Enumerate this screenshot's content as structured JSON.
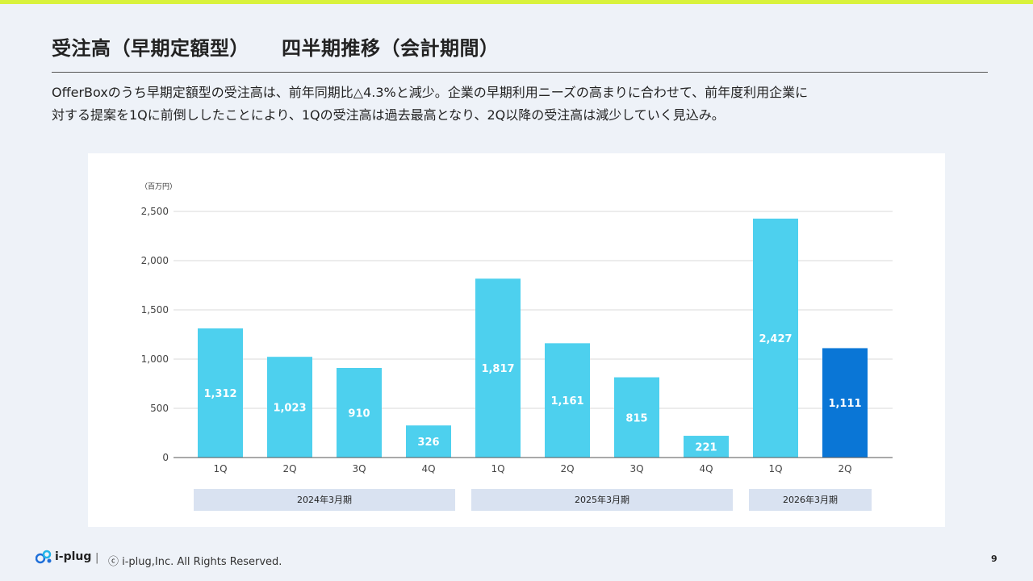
{
  "slide": {
    "title": "受注高（早期定額型）",
    "title_2": "四半期推移（会計期間）",
    "description_line1": "OfferBoxのうち早期定額型の受注高は、前年同期比△4.3%と減少。企業の早期利用ニーズの高まりに合わせて、前年度利用企業に",
    "description_line2": "対する提案を1Qに前倒ししたことにより、1Qの受注高は過去最高となり、2Q以降の受注高は減少していく見込み。",
    "page_number": "9"
  },
  "footer": {
    "brand": "i-plug",
    "separator": "|",
    "copyright": "ⓒ i-plug,Inc. All Rights Reserved."
  },
  "chart_data": {
    "type": "bar",
    "unit_label": "（百万円）",
    "categories": [
      "1Q",
      "2Q",
      "3Q",
      "4Q",
      "1Q",
      "2Q",
      "3Q",
      "4Q",
      "1Q",
      "2Q"
    ],
    "values": [
      1312,
      1023,
      910,
      326,
      1817,
      1161,
      815,
      221,
      2427,
      1111
    ],
    "value_labels": [
      "1,312",
      "1,023",
      "910",
      "326",
      "1,817",
      "1,161",
      "815",
      "221",
      "2,427",
      "1,111"
    ],
    "highlight_index": 9,
    "colors": {
      "bar": "#4dd0ee",
      "highlight": "#0a76d6",
      "grid": "#d9d9d9",
      "label": "#ffffff"
    },
    "ylim": [
      0,
      2500
    ],
    "yticks": [
      0,
      500,
      1000,
      1500,
      2000,
      2500
    ],
    "ytick_labels": [
      "0",
      "500",
      "1,000",
      "1,500",
      "2,000",
      "2,500"
    ],
    "groups": [
      {
        "label": "2024年3月期",
        "start": 0,
        "end": 3
      },
      {
        "label": "2025年3月期",
        "start": 4,
        "end": 7
      },
      {
        "label": "2026年3月期",
        "start": 8,
        "end": 9
      }
    ],
    "grid": true,
    "legend": "none"
  }
}
